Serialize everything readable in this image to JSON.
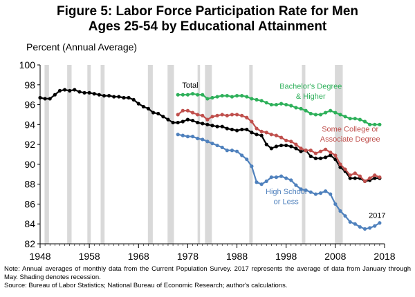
{
  "title_line1": "Figure 5: Labor Force Participation Rate for Men",
  "title_line2": "Ages 25-54 by Educational Attainment",
  "y_axis_label": "Percent (Annual Average)",
  "note": "Note: Annual averages of monthly data from the Current Population Survey. 2017 represents the average of data from January through May. Shading denotes recession.",
  "source": "Source: Bureau of Labor Statistics; National Bureau of Economic Research; author's calculations.",
  "colors": {
    "total": "#000000",
    "bachelor": "#2eb05a",
    "some_college": "#c0504d",
    "high_school": "#4f81bd",
    "recession": "#d9d9d9"
  },
  "chart_data": {
    "type": "line",
    "title": "Figure 5: Labor Force Participation Rate for Men Ages 25-54 by Educational Attainment",
    "ylabel": "Percent (Annual Average)",
    "xlim": [
      1948,
      2018
    ],
    "ylim": [
      82,
      100
    ],
    "xticks": [
      1948,
      1958,
      1968,
      1978,
      1988,
      1998,
      2008,
      2018
    ],
    "yticks": [
      82,
      84,
      86,
      88,
      90,
      92,
      94,
      96,
      98,
      100
    ],
    "recessions": [
      [
        1948.9,
        1949.8
      ],
      [
        1953.5,
        1954.4
      ],
      [
        1957.6,
        1958.3
      ],
      [
        1960.3,
        1961.1
      ],
      [
        1969.9,
        1970.9
      ],
      [
        1973.9,
        1975.2
      ],
      [
        1980.0,
        1980.5
      ],
      [
        1981.5,
        1982.9
      ],
      [
        1990.5,
        1991.2
      ],
      [
        2001.2,
        2001.9
      ],
      [
        2007.9,
        2009.5
      ]
    ],
    "annotations": [
      {
        "label": "Total",
        "x": 1978.5,
        "y": 97.7
      },
      {
        "label": "Bachelor's Degree",
        "x": 2003,
        "y": 97.6
      },
      {
        "label": "& Higher",
        "x": 2003,
        "y": 96.6
      },
      {
        "label": "Some College or",
        "x": 2011,
        "y": 93.3
      },
      {
        "label": "Associate Degree",
        "x": 2011,
        "y": 92.3
      },
      {
        "label": "High School",
        "x": 1998,
        "y": 87.0
      },
      {
        "label": "or Less",
        "x": 1998,
        "y": 86.0
      },
      {
        "label": "2017",
        "x": 2016.5,
        "y": 84.6
      }
    ],
    "series": [
      {
        "name": "Total",
        "color": "#000000",
        "x_start": 1948,
        "values": [
          96.7,
          96.6,
          96.6,
          97.0,
          97.4,
          97.5,
          97.4,
          97.5,
          97.3,
          97.2,
          97.2,
          97.1,
          97.0,
          96.9,
          96.9,
          96.8,
          96.8,
          96.7,
          96.7,
          96.5,
          96.1,
          95.8,
          95.6,
          95.2,
          95.1,
          94.8,
          94.5,
          94.2,
          94.2,
          94.3,
          94.5,
          94.4,
          94.2,
          94.1,
          94.0,
          93.9,
          93.8,
          93.8,
          93.6,
          93.5,
          93.4,
          93.5,
          93.5,
          93.2,
          93.0,
          92.9,
          92.0,
          91.6,
          91.8,
          91.9,
          91.9,
          91.8,
          91.6,
          91.3,
          91.4,
          90.8,
          90.6,
          90.6,
          90.7,
          90.9,
          90.5,
          89.7,
          89.3,
          88.6,
          88.6,
          88.6,
          88.3,
          88.4,
          88.6,
          88.6
        ]
      },
      {
        "name": "Bachelor's Degree & Higher",
        "color": "#2eb05a",
        "x_start": 1976,
        "values": [
          97.0,
          97.0,
          97.0,
          97.1,
          97.0,
          97.0,
          96.6,
          96.7,
          96.8,
          96.9,
          96.9,
          96.8,
          96.9,
          96.9,
          96.8,
          96.6,
          96.5,
          96.4,
          96.2,
          96.0,
          96.0,
          96.1,
          96.0,
          95.9,
          95.7,
          95.6,
          95.4,
          95.1,
          95.0,
          95.0,
          95.2,
          95.4,
          95.2,
          95.0,
          94.8,
          94.6,
          94.6,
          94.5,
          94.3,
          94.0,
          94.0,
          94.0
        ]
      },
      {
        "name": "Some College or Associate Degree",
        "color": "#c0504d",
        "x_start": 1976,
        "values": [
          95.0,
          95.4,
          95.4,
          95.2,
          95.0,
          94.9,
          94.5,
          94.8,
          94.9,
          95.0,
          94.9,
          95.0,
          95.0,
          94.9,
          94.7,
          94.3,
          93.6,
          93.3,
          93.2,
          93.0,
          92.9,
          92.7,
          92.4,
          92.3,
          92.0,
          91.6,
          91.4,
          91.4,
          91.1,
          91.3,
          91.5,
          91.2,
          90.9,
          90.0,
          89.5,
          88.9,
          89.1,
          88.8,
          88.3,
          88.6,
          88.9,
          88.7
        ]
      },
      {
        "name": "High School or Less",
        "color": "#4f81bd",
        "x_start": 1976,
        "values": [
          93.0,
          92.9,
          92.8,
          92.8,
          92.6,
          92.5,
          92.3,
          92.1,
          91.9,
          91.7,
          91.4,
          91.4,
          91.3,
          90.9,
          90.5,
          89.8,
          88.2,
          88.0,
          88.3,
          88.7,
          88.7,
          88.8,
          88.6,
          88.4,
          87.9,
          87.5,
          87.4,
          87.2,
          87.0,
          87.1,
          87.3,
          87.0,
          86.0,
          85.3,
          84.8,
          84.2,
          84.0,
          83.7,
          83.5,
          83.6,
          83.8,
          84.1
        ]
      }
    ]
  }
}
